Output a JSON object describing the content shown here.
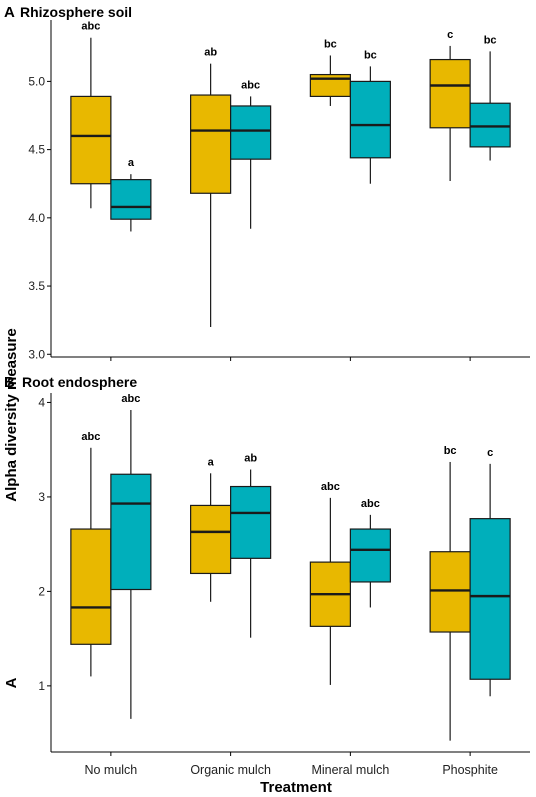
{
  "colors": {
    "series1": "#E8B800",
    "series2": "#00AFBB",
    "stroke": "#1a1a1a"
  },
  "shared": {
    "ylabel": "Alpha diversity measure",
    "xlabel": "Treatment",
    "categories": [
      "No mulch",
      "Organic mulch",
      "Mineral mulch",
      "Phosphite"
    ]
  },
  "chart_data": [
    {
      "type": "boxplot",
      "panel_letter": "A",
      "title": "Rhizosphere soil",
      "ylim": [
        2.98,
        5.45
      ],
      "yticks": [
        "3.0",
        "3.5",
        "4.0",
        "4.5",
        "5.0"
      ],
      "ytick_values": [
        3.0,
        3.5,
        4.0,
        4.5,
        5.0
      ],
      "series": [
        {
          "name": "",
          "boxes": [
            {
              "min": 4.07,
              "q1": 4.25,
              "median": 4.6,
              "q3": 4.89,
              "max": 5.32,
              "letter": "abc"
            },
            {
              "min": 3.2,
              "q1": 4.18,
              "median": 4.64,
              "q3": 4.9,
              "max": 5.13,
              "letter": "ab"
            },
            {
              "min": 4.82,
              "q1": 4.89,
              "median": 5.02,
              "q3": 5.05,
              "max": 5.19,
              "letter": "bc"
            },
            {
              "min": 4.27,
              "q1": 4.66,
              "median": 4.97,
              "q3": 5.16,
              "max": 5.26,
              "letter": "c"
            }
          ]
        },
        {
          "name": "",
          "boxes": [
            {
              "min": 3.9,
              "q1": 3.99,
              "median": 4.08,
              "q3": 4.28,
              "max": 4.32,
              "letter": "a"
            },
            {
              "min": 3.92,
              "q1": 4.43,
              "median": 4.64,
              "q3": 4.82,
              "max": 4.89,
              "letter": "abc"
            },
            {
              "min": 4.25,
              "q1": 4.44,
              "median": 4.68,
              "q3": 5.0,
              "max": 5.11,
              "letter": "bc"
            },
            {
              "min": 4.42,
              "q1": 4.52,
              "median": 4.67,
              "q3": 4.84,
              "max": 5.22,
              "letter": "bc"
            }
          ]
        }
      ]
    },
    {
      "type": "boxplot",
      "panel_letter": "B",
      "title": "Root endosphere",
      "side_label": "A",
      "ylim": [
        0.3,
        4.1
      ],
      "yticks": [
        "1",
        "2",
        "3",
        "4"
      ],
      "ytick_values": [
        1,
        2,
        3,
        4
      ],
      "series": [
        {
          "name": "",
          "boxes": [
            {
              "min": 1.1,
              "q1": 1.44,
              "median": 1.83,
              "q3": 2.66,
              "max": 3.52,
              "letter": "abc"
            },
            {
              "min": 1.89,
              "q1": 2.19,
              "median": 2.63,
              "q3": 2.91,
              "max": 3.25,
              "letter": "a"
            },
            {
              "min": 1.01,
              "q1": 1.63,
              "median": 1.97,
              "q3": 2.31,
              "max": 2.99,
              "letter": "abc"
            },
            {
              "min": 0.42,
              "q1": 1.57,
              "median": 2.01,
              "q3": 2.42,
              "max": 3.37,
              "letter": "bc"
            }
          ]
        },
        {
          "name": "",
          "boxes": [
            {
              "min": 0.65,
              "q1": 2.02,
              "median": 2.93,
              "q3": 3.24,
              "max": 3.92,
              "letter": "abc"
            },
            {
              "min": 1.51,
              "q1": 2.35,
              "median": 2.83,
              "q3": 3.11,
              "max": 3.29,
              "letter": "ab"
            },
            {
              "min": 1.83,
              "q1": 2.1,
              "median": 2.44,
              "q3": 2.66,
              "max": 2.81,
              "letter": "abc"
            },
            {
              "min": 0.89,
              "q1": 1.07,
              "median": 1.95,
              "q3": 2.77,
              "max": 3.35,
              "letter": "c"
            }
          ]
        }
      ]
    }
  ]
}
